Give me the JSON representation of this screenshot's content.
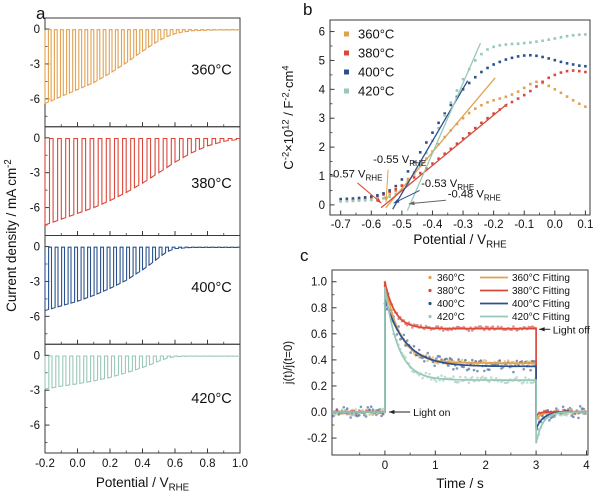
{
  "letters": {
    "a": "a",
    "b": "b",
    "c": "c"
  },
  "colors": {
    "t360": "#E2A14F",
    "t380": "#D9483B",
    "t400": "#2B528E",
    "t420": "#9AC8B8",
    "axis": "#3A3A3A",
    "text": "#111111",
    "gray": "#666666"
  },
  "chart_data": [
    {
      "panel": "a",
      "type": "line",
      "description": "Chopped-light linear sweep voltammetry, four stacked subplots",
      "xlabel_segments": [
        {
          "t": "Potential / V"
        },
        {
          "sub": "RHE"
        }
      ],
      "ylabel_segments": [
        {
          "t": "Current density / mA cm"
        },
        {
          "sup": "-2"
        }
      ],
      "xlim": [
        -0.2,
        1.0
      ],
      "x_ticks": [
        {
          "v": -0.2,
          "l": "-0.2"
        },
        {
          "v": 0.0,
          "l": "0.0"
        },
        {
          "v": 0.2,
          "l": "0.2"
        },
        {
          "v": 0.4,
          "l": "0.4"
        },
        {
          "v": 0.6,
          "l": "0.6"
        },
        {
          "v": 0.8,
          "l": "0.8"
        },
        {
          "v": 1.0,
          "l": "1.0"
        }
      ],
      "x_minor": [
        -0.1,
        0.1,
        0.3,
        0.5,
        0.7,
        0.9
      ],
      "ylim": [
        -8.4,
        0.95
      ],
      "y_ticks": [
        {
          "v": 0,
          "l": "0"
        },
        {
          "v": -3,
          "l": "-3"
        },
        {
          "v": -6,
          "l": "-6"
        }
      ],
      "y_minor": [
        -1.5,
        -4.5,
        -7.5
      ],
      "chop_duty": 0.55,
      "dark_level": -0.06,
      "subplots": [
        {
          "label": "360°C",
          "color_key": "t360",
          "chops": 32,
          "label_y": -3.9,
          "envelope": [
            [
              -0.2,
              -6.4
            ],
            [
              -0.1,
              -5.8
            ],
            [
              0.0,
              -5.2
            ],
            [
              0.1,
              -4.6
            ],
            [
              0.2,
              -3.8
            ],
            [
              0.3,
              -2.9
            ],
            [
              0.4,
              -1.9
            ],
            [
              0.5,
              -1.0
            ],
            [
              0.55,
              -0.65
            ],
            [
              0.6,
              -0.4
            ],
            [
              0.65,
              -0.25
            ],
            [
              0.7,
              -0.15
            ],
            [
              0.8,
              -0.1
            ],
            [
              0.9,
              -0.07
            ],
            [
              1.0,
              -0.05
            ]
          ]
        },
        {
          "label": "380°C",
          "color_key": "t380",
          "chops": 24,
          "label_y": -4.3,
          "envelope": [
            [
              -0.2,
              -7.5
            ],
            [
              -0.1,
              -7.0
            ],
            [
              0.0,
              -6.5
            ],
            [
              0.1,
              -6.0
            ],
            [
              0.2,
              -5.4
            ],
            [
              0.3,
              -4.7
            ],
            [
              0.4,
              -3.9
            ],
            [
              0.5,
              -3.0
            ],
            [
              0.6,
              -2.1
            ],
            [
              0.7,
              -1.3
            ],
            [
              0.8,
              -0.7
            ],
            [
              0.9,
              -0.3
            ],
            [
              1.0,
              -0.12
            ]
          ]
        },
        {
          "label": "400°C",
          "color_key": "t400",
          "chops": 30,
          "label_y": -3.9,
          "envelope": [
            [
              -0.2,
              -5.5
            ],
            [
              -0.1,
              -5.1
            ],
            [
              0.0,
              -4.7
            ],
            [
              0.1,
              -4.2
            ],
            [
              0.2,
              -3.6
            ],
            [
              0.3,
              -2.9
            ],
            [
              0.4,
              -2.0
            ],
            [
              0.45,
              -1.5
            ],
            [
              0.5,
              -0.95
            ],
            [
              0.55,
              -0.45
            ],
            [
              0.6,
              -0.18
            ],
            [
              0.7,
              -0.08
            ],
            [
              0.8,
              -0.05
            ],
            [
              1.0,
              -0.04
            ]
          ]
        },
        {
          "label": "420°C",
          "color_key": "t420",
          "chops": 28,
          "label_y": -4.1,
          "envelope": [
            [
              -0.2,
              -2.9
            ],
            [
              -0.1,
              -2.65
            ],
            [
              0.0,
              -2.45
            ],
            [
              0.1,
              -2.2
            ],
            [
              0.2,
              -1.9
            ],
            [
              0.3,
              -1.5
            ],
            [
              0.4,
              -1.05
            ],
            [
              0.45,
              -0.8
            ],
            [
              0.5,
              -0.5
            ],
            [
              0.55,
              -0.25
            ],
            [
              0.6,
              -0.12
            ],
            [
              0.7,
              -0.06
            ],
            [
              0.8,
              -0.04
            ],
            [
              1.0,
              -0.03
            ]
          ]
        }
      ]
    },
    {
      "panel": "b",
      "type": "scatter",
      "description": "Mott-Schottky plot with linear fits and flat-band potential annotations",
      "xlabel_segments": [
        {
          "t": "Potential / V"
        },
        {
          "sub": "RHE"
        }
      ],
      "ylabel_segments": [
        {
          "t": "C"
        },
        {
          "sup": "-2"
        },
        {
          "t": "×10"
        },
        {
          "sup": "12"
        },
        {
          "t": " / F"
        },
        {
          "sup": "-2"
        },
        {
          "t": "·cm"
        },
        {
          "sup": "4"
        }
      ],
      "xlim": [
        -0.735,
        0.115
      ],
      "x_ticks": [
        {
          "v": -0.7,
          "l": "-0.7"
        },
        {
          "v": -0.6,
          "l": "-0.6"
        },
        {
          "v": -0.5,
          "l": "-0.5"
        },
        {
          "v": -0.4,
          "l": "-0.4"
        },
        {
          "v": -0.3,
          "l": "-0.3"
        },
        {
          "v": -0.2,
          "l": "-0.2"
        },
        {
          "v": -0.1,
          "l": "-0.1"
        },
        {
          "v": 0.0,
          "l": "0.0"
        },
        {
          "v": 0.1,
          "l": "0.1"
        }
      ],
      "x_minor": [
        -0.65,
        -0.55,
        -0.45,
        -0.35,
        -0.25,
        -0.15,
        -0.05,
        0.05
      ],
      "ylim": [
        -0.35,
        6.4
      ],
      "y_ticks": [
        {
          "v": 0,
          "l": "0"
        },
        {
          "v": 1,
          "l": "1"
        },
        {
          "v": 2,
          "l": "2"
        },
        {
          "v": 3,
          "l": "3"
        },
        {
          "v": 4,
          "l": "4"
        },
        {
          "v": 5,
          "l": "5"
        },
        {
          "v": 6,
          "l": "6"
        }
      ],
      "y_minor": [
        0.5,
        1.5,
        2.5,
        3.5,
        4.5,
        5.5
      ],
      "x_start": -0.7,
      "x_step": 0.02,
      "legend": [
        {
          "label": "360°C",
          "color_key": "t360"
        },
        {
          "label": "380°C",
          "color_key": "t380"
        },
        {
          "label": "400°C",
          "color_key": "t400"
        },
        {
          "label": "420°C",
          "color_key": "t420"
        }
      ],
      "series": [
        {
          "name": "360°C",
          "color_key": "t360",
          "y": [
            0.13,
            0.13,
            0.14,
            0.15,
            0.16,
            0.17,
            0.19,
            0.23,
            0.33,
            0.48,
            0.68,
            0.9,
            1.12,
            1.36,
            1.6,
            1.85,
            2.1,
            2.35,
            2.58,
            2.8,
            3.0,
            3.18,
            3.33,
            3.45,
            3.55,
            3.62,
            3.68,
            3.74,
            3.82,
            3.92,
            4.05,
            4.18,
            4.26,
            4.22,
            4.12,
            4.0,
            3.88,
            3.75,
            3.62,
            3.5,
            3.4
          ]
        },
        {
          "name": "380°C",
          "color_key": "t380",
          "y": [
            0.15,
            0.16,
            0.18,
            0.2,
            0.23,
            0.26,
            0.3,
            0.36,
            0.44,
            0.54,
            0.66,
            0.8,
            0.95,
            1.1,
            1.26,
            1.43,
            1.6,
            1.77,
            1.94,
            2.12,
            2.3,
            2.48,
            2.66,
            2.84,
            3.0,
            3.16,
            3.3,
            3.44,
            3.56,
            3.68,
            3.8,
            3.94,
            4.1,
            4.26,
            4.4,
            4.5,
            4.58,
            4.63,
            4.65,
            4.63,
            4.6
          ]
        },
        {
          "name": "400°C",
          "color_key": "t400",
          "y": [
            0.2,
            0.21,
            0.22,
            0.24,
            0.26,
            0.29,
            0.33,
            0.4,
            0.5,
            0.65,
            0.88,
            1.16,
            1.48,
            1.82,
            2.16,
            2.5,
            2.84,
            3.16,
            3.46,
            3.74,
            4.0,
            4.22,
            4.42,
            4.6,
            4.74,
            4.86,
            4.95,
            5.03,
            5.09,
            5.14,
            5.17,
            5.18,
            5.16,
            5.12,
            5.07,
            5.01,
            4.95,
            4.9,
            4.86,
            4.82,
            4.8
          ]
        },
        {
          "name": "420°C",
          "color_key": "t420",
          "y": [
            0.12,
            0.13,
            0.14,
            0.15,
            0.16,
            0.18,
            0.2,
            0.23,
            0.28,
            0.37,
            0.52,
            0.75,
            1.05,
            1.4,
            1.8,
            2.22,
            2.66,
            3.1,
            3.54,
            3.96,
            4.35,
            4.7,
            5.0,
            5.22,
            5.38,
            5.47,
            5.52,
            5.55,
            5.57,
            5.58,
            5.6,
            5.62,
            5.65,
            5.68,
            5.72,
            5.76,
            5.8,
            5.84,
            5.87,
            5.89,
            5.9
          ]
        }
      ],
      "fits": [
        {
          "color_key": "t360",
          "x1": -0.553,
          "y1": -0.1,
          "x2": -0.195,
          "y2": 4.4
        },
        {
          "color_key": "t380",
          "x1": -0.568,
          "y1": -0.1,
          "x2": -0.155,
          "y2": 3.5
        },
        {
          "color_key": "t400",
          "x1": -0.53,
          "y1": -0.15,
          "x2": -0.285,
          "y2": 4.3
        },
        {
          "color_key": "t420",
          "x1": -0.482,
          "y1": -0.2,
          "x2": -0.243,
          "y2": 5.6
        }
      ],
      "annotations": [
        {
          "segments": [
            {
              "t": "-0.55 V"
            },
            {
              "sub": "RHE"
            }
          ],
          "color_key": "t360",
          "tx": -0.594,
          "ty": 1.45,
          "arrow": {
            "x1": -0.545,
            "y1": 1.22,
            "x2": -0.552,
            "y2": 0.1,
            "color_key": "t360"
          }
        },
        {
          "segments": [
            {
              "t": "-0.57 V"
            },
            {
              "sub": "RHE"
            }
          ],
          "color_key": "t380",
          "tx": -0.737,
          "ty": 0.95,
          "arrow": {
            "x1": -0.645,
            "y1": 0.76,
            "x2": -0.567,
            "y2": 0.06,
            "color_key": "t380"
          }
        },
        {
          "segments": [
            {
              "t": "-0.53 V"
            },
            {
              "sub": "RHE"
            }
          ],
          "color_key": "t400",
          "tx": -0.437,
          "ty": 0.62,
          "arrow": {
            "x1": -0.442,
            "y1": 0.5,
            "x2": -0.527,
            "y2": 0.06,
            "color_key": "t400"
          }
        },
        {
          "segments": [
            {
              "t": "-0.48 V"
            },
            {
              "sub": "RHE"
            }
          ],
          "color_key": "t420",
          "tx": -0.35,
          "ty": 0.25,
          "arrow": {
            "x1": -0.356,
            "y1": 0.16,
            "x2": -0.477,
            "y2": 0.04,
            "color_key": "gray"
          }
        }
      ]
    },
    {
      "panel": "c",
      "type": "line",
      "description": "Normalized transient photocurrent with exponential fittings",
      "xlabel_segments": [
        {
          "t": "Time / s"
        }
      ],
      "ylabel_segments": [
        {
          "t": "j(t)/j(t=0)"
        }
      ],
      "xlim": [
        -1.05,
        4.03
      ],
      "x_ticks": [
        {
          "v": 0,
          "l": "0"
        },
        {
          "v": 1,
          "l": "1"
        },
        {
          "v": 2,
          "l": "2"
        },
        {
          "v": 3,
          "l": "3"
        },
        {
          "v": 4,
          "l": "4"
        }
      ],
      "x_minor": [
        -0.5,
        0.5,
        1.5,
        2.5,
        3.5
      ],
      "ylim": [
        -0.33,
        1.09
      ],
      "y_ticks": [
        {
          "v": -0.2,
          "l": "-0.2"
        },
        {
          "v": 0.0,
          "l": "0.0"
        },
        {
          "v": 0.2,
          "l": "0.2"
        },
        {
          "v": 0.4,
          "l": "0.4"
        },
        {
          "v": 0.6,
          "l": "0.6"
        },
        {
          "v": 0.8,
          "l": "0.8"
        },
        {
          "v": 1.0,
          "l": "1.0"
        }
      ],
      "y_minor": [
        -0.1,
        0.1,
        0.3,
        0.5,
        0.7,
        0.9
      ],
      "light_on_t": 0,
      "light_off_t": 3,
      "series": [
        {
          "name": "360°C",
          "fit_label": "360°C Fitting",
          "color_key": "t360",
          "peak": 0.99,
          "steady": 0.375,
          "tau": 0.3,
          "off_undershoot": -0.06,
          "off_tau": 0.1,
          "noise": 0.015
        },
        {
          "name": "380°C",
          "fit_label": "380°C Fitting",
          "color_key": "t380",
          "peak": 1.0,
          "steady": 0.64,
          "tau": 0.2,
          "off_undershoot": -0.03,
          "off_tau": 0.06,
          "noise": 0.012
        },
        {
          "name": "400°C",
          "fit_label": "400°C Fitting",
          "color_key": "t400",
          "peak": 0.87,
          "steady": 0.35,
          "tau": 0.4,
          "off_undershoot": -0.13,
          "off_tau": 0.14,
          "noise": 0.032
        },
        {
          "name": "420°C",
          "fit_label": "420°C Fitting",
          "color_key": "t420",
          "peak": 0.96,
          "steady": 0.245,
          "tau": 0.26,
          "off_undershoot": -0.24,
          "off_tau": 0.13,
          "noise": 0.018
        }
      ],
      "annotations": [
        {
          "text": "Light on",
          "tip_x": 0.08,
          "tip_y": 0.0,
          "tail_x": 0.5,
          "text_x": 0.56
        },
        {
          "text": "Light off",
          "tip_x": 3.06,
          "tip_y": 0.635,
          "tail_x": 3.28,
          "text_x": 3.33
        }
      ]
    }
  ]
}
